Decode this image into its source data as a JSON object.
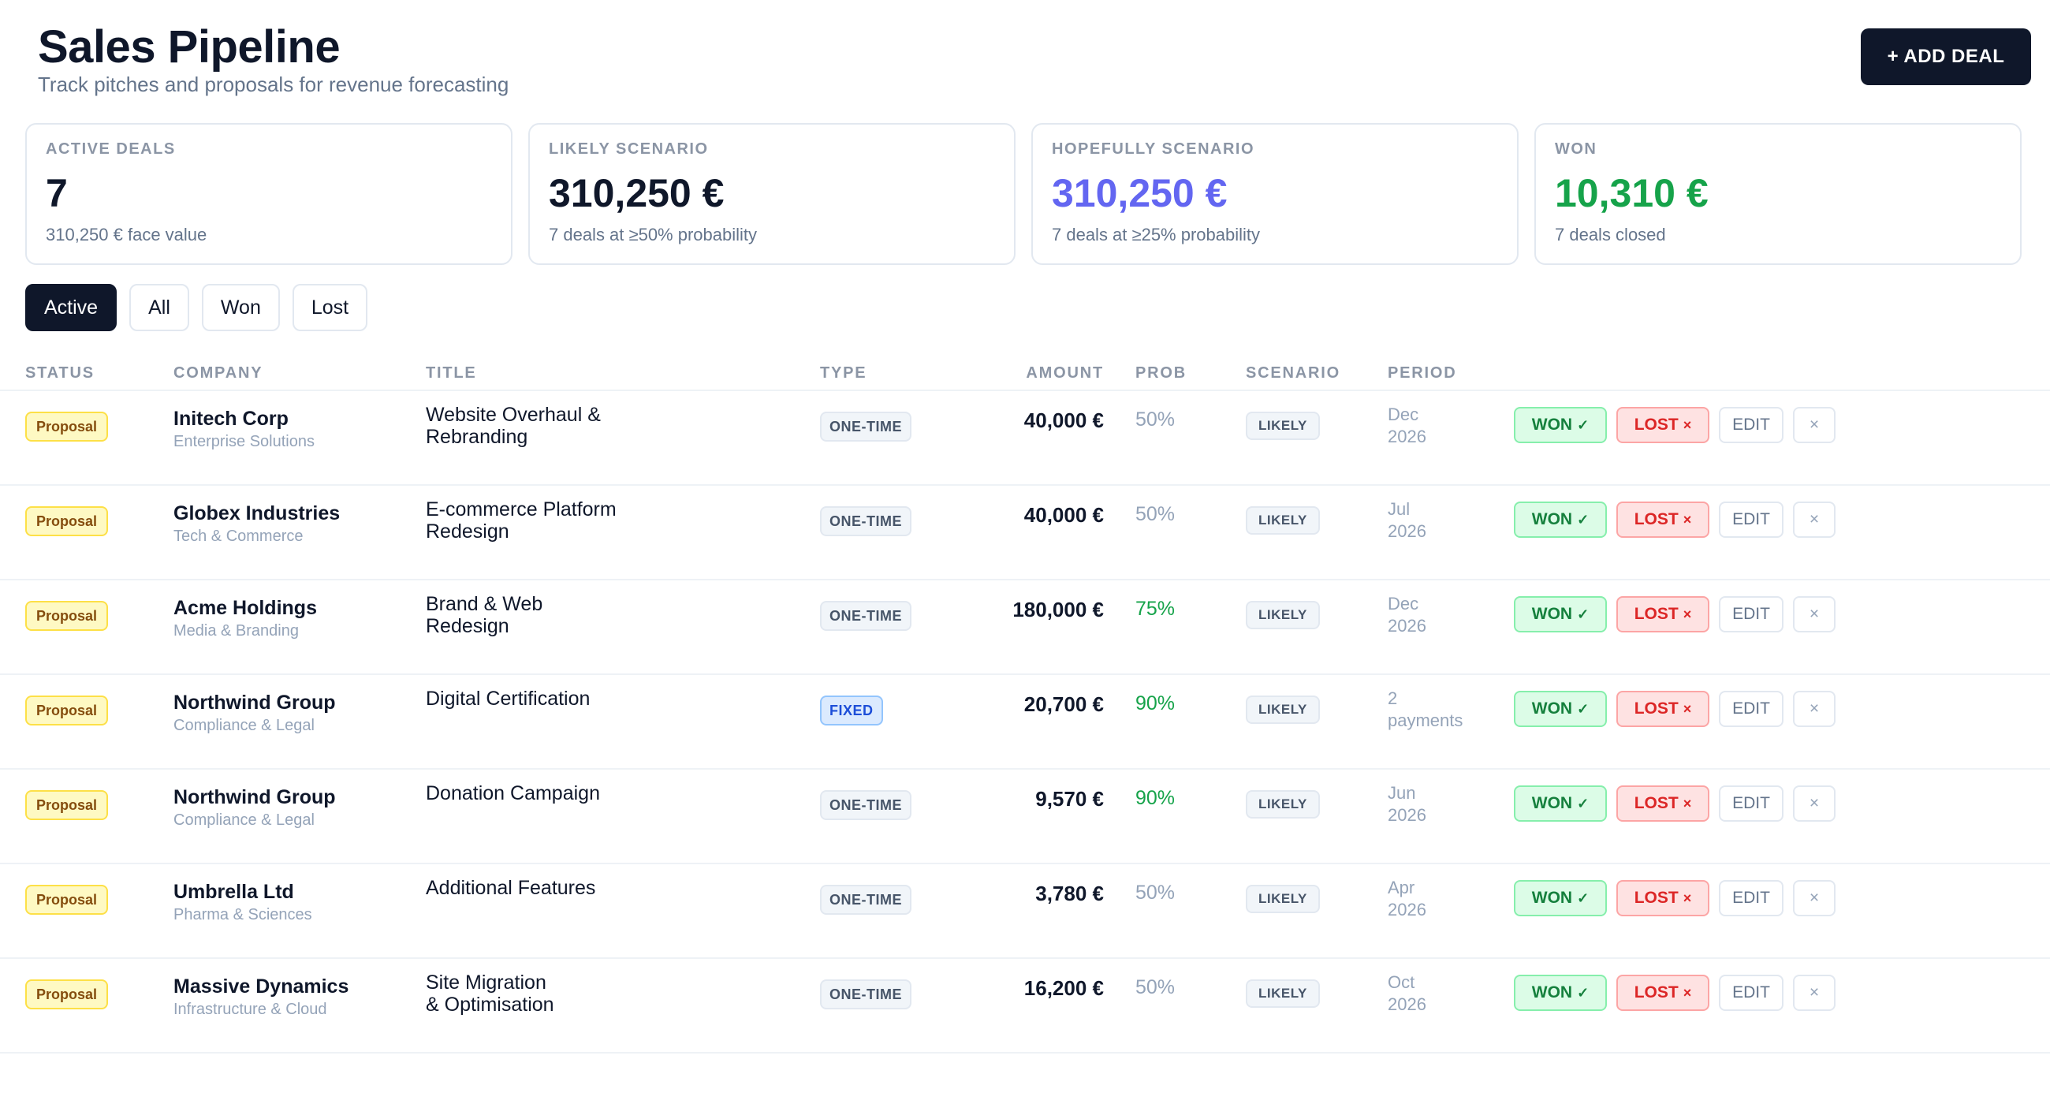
{
  "header": {
    "title": "Sales Pipeline",
    "subtitle": "Track pitches and proposals for revenue forecasting",
    "add_deal_label": "+ ADD DEAL"
  },
  "cards": [
    {
      "label": "ACTIVE DEALS",
      "value": "7",
      "note": "310,250 € face value",
      "color": "#0f172a"
    },
    {
      "label": "LIKELY SCENARIO",
      "value": "310,250 €",
      "note": "7 deals at ≥50% probability",
      "color": "#0f172a"
    },
    {
      "label": "HOPEFULLY SCENARIO",
      "value": "310,250 €",
      "note": "7 deals at ≥25% probability",
      "color": "#6366f1"
    },
    {
      "label": "WON",
      "value": "10,310 €",
      "note": "7 deals closed",
      "color": "#16a34a"
    }
  ],
  "filters": [
    {
      "label": "Active",
      "active": true
    },
    {
      "label": "All",
      "active": false
    },
    {
      "label": "Won",
      "active": false
    },
    {
      "label": "Lost",
      "active": false
    }
  ],
  "table": {
    "columns": {
      "status": "STATUS",
      "company": "COMPANY",
      "title": "TITLE",
      "type": "TYPE",
      "amount": "AMOUNT",
      "prob": "PROB",
      "scenario": "SCENARIO",
      "period": "PERIOD"
    },
    "actions": {
      "won": "WON",
      "lost": "LOST",
      "edit": "EDIT",
      "close": "×",
      "won_icon": "check-icon",
      "lost_icon": "x-icon"
    },
    "rows": [
      {
        "status": "Proposal",
        "company": "Initech Corp",
        "sector": "Enterprise Solutions",
        "title_lines": [
          "Website Overhaul &",
          "Rebranding"
        ],
        "type": "ONE-TIME",
        "amount": "40,000 €",
        "prob": "50%",
        "scenario": "LIKELY",
        "period_lines": [
          "Dec",
          "2026"
        ]
      },
      {
        "status": "Proposal",
        "company": "Globex Industries",
        "sector": "Tech & Commerce",
        "title_lines": [
          "E-commerce Platform",
          "Redesign"
        ],
        "type": "ONE-TIME",
        "amount": "40,000 €",
        "prob": "50%",
        "scenario": "LIKELY",
        "period_lines": [
          "Jul",
          "2026"
        ]
      },
      {
        "status": "Proposal",
        "company": "Acme Holdings",
        "sector": "Media & Branding",
        "title_lines": [
          "Brand & Web",
          "Redesign"
        ],
        "type": "ONE-TIME",
        "amount": "180,000 €",
        "prob": "75%",
        "scenario": "LIKELY",
        "period_lines": [
          "Dec",
          "2026"
        ]
      },
      {
        "status": "Proposal",
        "company": "Northwind Group",
        "sector": "Compliance & Legal",
        "title_lines": [
          "Digital Certification"
        ],
        "type": "FIXED",
        "amount": "20,700 €",
        "prob": "90%",
        "scenario": "LIKELY",
        "period_lines": [
          "2",
          "payments"
        ]
      },
      {
        "status": "Proposal",
        "company": "Northwind Group",
        "sector": "Compliance & Legal",
        "title_lines": [
          "Donation Campaign"
        ],
        "type": "ONE-TIME",
        "amount": "9,570 €",
        "prob": "90%",
        "scenario": "LIKELY",
        "period_lines": [
          "Jun",
          "2026"
        ]
      },
      {
        "status": "Proposal",
        "company": "Umbrella Ltd",
        "sector": "Pharma & Sciences",
        "title_lines": [
          "Additional Features"
        ],
        "type": "ONE-TIME",
        "amount": "3,780 €",
        "prob": "50%",
        "scenario": "LIKELY",
        "period_lines": [
          "Apr",
          "2026"
        ]
      },
      {
        "status": "Proposal",
        "company": "Massive Dynamics",
        "sector": "Infrastructure & Cloud",
        "title_lines": [
          "Site Migration",
          "& Optimisation"
        ],
        "type": "ONE-TIME",
        "amount": "16,200 €",
        "prob": "50%",
        "scenario": "LIKELY",
        "period_lines": [
          "Oct",
          "2026"
        ]
      }
    ]
  }
}
